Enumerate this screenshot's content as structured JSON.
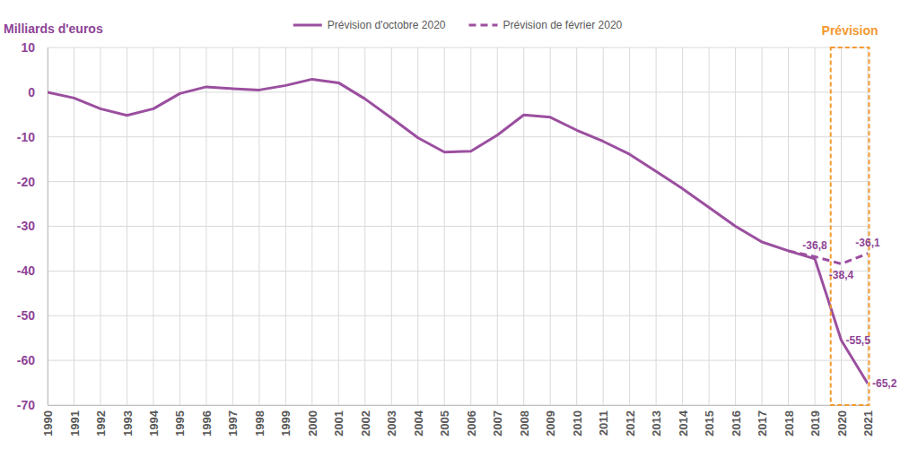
{
  "chart_data": {
    "type": "line",
    "y_label": "Milliards d'euros",
    "x": [
      1990,
      1991,
      1992,
      1993,
      1994,
      1995,
      1996,
      1997,
      1998,
      1999,
      2000,
      2001,
      2002,
      2003,
      2004,
      2005,
      2006,
      2007,
      2008,
      2009,
      2010,
      2011,
      2012,
      2013,
      2014,
      2015,
      2016,
      2017,
      2018,
      2019,
      2020,
      2021
    ],
    "xlim": [
      1990,
      2021
    ],
    "xticks": [
      1990,
      1991,
      1992,
      1993,
      1994,
      1995,
      1996,
      1997,
      1998,
      1999,
      2000,
      2001,
      2002,
      2003,
      2004,
      2005,
      2006,
      2007,
      2008,
      2009,
      2010,
      2011,
      2012,
      2013,
      2014,
      2015,
      2016,
      2017,
      2018,
      2019,
      2020,
      2021
    ],
    "ylim": [
      -70,
      10
    ],
    "yticks": [
      -70,
      -60,
      -50,
      -40,
      -30,
      -20,
      -10,
      0,
      10
    ],
    "grid": true,
    "legend": "top",
    "data_labels": true,
    "series": [
      {
        "name": "Prévision d'octobre 2020",
        "color": "#9b4f9f",
        "line_style": "solid",
        "values": [
          0,
          -1.3,
          -3.7,
          -5.2,
          -3.7,
          -0.3,
          1.2,
          0.8,
          0.5,
          1.5,
          2.9,
          2.1,
          -1.5,
          -5.8,
          -10.2,
          -13.4,
          -13.2,
          -9.6,
          -5.1,
          -5.6,
          -8.5,
          -11.0,
          -13.9,
          -17.7,
          -21.6,
          -25.8,
          -30.0,
          -33.5,
          -35.5,
          -37.3,
          -55.5,
          -65.2
        ],
        "value_labels": [
          null,
          null,
          null,
          null,
          null,
          null,
          null,
          null,
          null,
          null,
          null,
          null,
          null,
          null,
          null,
          null,
          null,
          null,
          null,
          null,
          null,
          null,
          null,
          null,
          null,
          null,
          null,
          null,
          null,
          null,
          "-55,5",
          "-65,2"
        ]
      },
      {
        "name": "Prévision de février 2020",
        "color": "#9b4f9f",
        "line_style": "dashed",
        "values": [
          null,
          null,
          null,
          null,
          null,
          null,
          null,
          null,
          null,
          null,
          null,
          null,
          null,
          null,
          null,
          null,
          null,
          null,
          null,
          null,
          null,
          null,
          null,
          null,
          null,
          null,
          null,
          null,
          -35.5,
          -36.8,
          -38.4,
          -36.1
        ],
        "value_labels": [
          null,
          null,
          null,
          null,
          null,
          null,
          null,
          null,
          null,
          null,
          null,
          null,
          null,
          null,
          null,
          null,
          null,
          null,
          null,
          null,
          null,
          null,
          null,
          null,
          null,
          null,
          null,
          null,
          null,
          "-36,8",
          "-38,4",
          "-36,1"
        ]
      }
    ],
    "annotations": [
      {
        "text": "Prévision",
        "x_range": [
          2019.6,
          2021.05
        ],
        "color": "#f39a2f"
      }
    ]
  }
}
